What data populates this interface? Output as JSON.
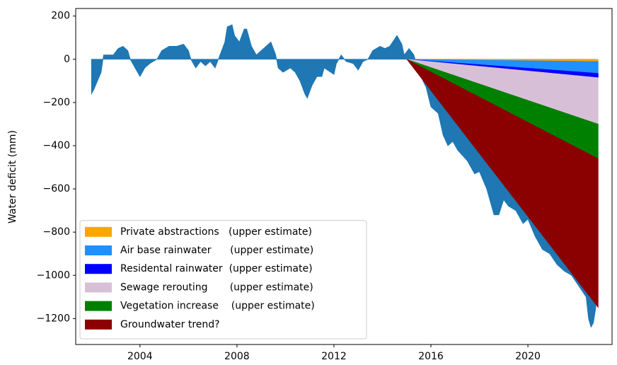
{
  "chart_data": {
    "type": "area",
    "y_label": "Water deficit (mm)",
    "xlim": [
      2001.35,
      2023.47
    ],
    "ylim": [
      -1320,
      235
    ],
    "xticks": [
      2004,
      2008,
      2012,
      2016,
      2020
    ],
    "yticks": [
      200,
      0,
      {
        "value": -200,
        "label": "−200"
      },
      {
        "value": -400,
        "label": "−400"
      },
      {
        "value": -600,
        "label": "−600"
      },
      {
        "value": -800,
        "label": "−800"
      },
      {
        "value": -1000,
        "label": "−1000"
      },
      {
        "value": -1200,
        "label": "−1200"
      }
    ],
    "measured": {
      "color": "#1f77b4",
      "x": [
        2002.0,
        2002.1,
        2002.4,
        2002.5,
        2002.9,
        2003.1,
        2003.3,
        2003.5,
        2003.6,
        2003.8,
        2004.0,
        2004.2,
        2004.4,
        2004.7,
        2004.9,
        2005.2,
        2005.5,
        2005.8,
        2006.0,
        2006.1,
        2006.3,
        2006.5,
        2006.7,
        2006.9,
        2007.1,
        2007.3,
        2007.5,
        2007.6,
        2007.8,
        2007.9,
        2008.1,
        2008.3,
        2008.4,
        2008.6,
        2008.8,
        2009.0,
        2009.2,
        2009.4,
        2009.6,
        2009.7,
        2009.9,
        2010.2,
        2010.4,
        2010.6,
        2010.8,
        2010.9,
        2011.1,
        2011.3,
        2011.5,
        2011.6,
        2012.0,
        2012.1,
        2012.3,
        2012.5,
        2012.8,
        2013.0,
        2013.2,
        2013.4,
        2013.6,
        2013.9,
        2014.1,
        2014.3,
        2014.6,
        2014.8,
        2014.9,
        2015.1,
        2015.3,
        2015.5,
        2015.8,
        2016.0,
        2016.3,
        2016.5,
        2016.7,
        2016.9,
        2017.1,
        2017.5,
        2017.8,
        2018.0,
        2018.3,
        2018.6,
        2018.8,
        2019.0,
        2019.2,
        2019.5,
        2019.8,
        2020.0,
        2020.3,
        2020.6,
        2020.9,
        2021.2,
        2021.5,
        2021.8,
        2022.1,
        2022.4,
        2022.5,
        2022.6,
        2022.7,
        2022.8
      ],
      "values": [
        -160,
        -140,
        -60,
        20,
        20,
        50,
        60,
        40,
        0,
        -40,
        -80,
        -40,
        -20,
        0,
        40,
        60,
        60,
        70,
        40,
        0,
        -40,
        -10,
        -30,
        -10,
        -40,
        20,
        80,
        150,
        160,
        110,
        80,
        140,
        140,
        60,
        20,
        40,
        60,
        80,
        20,
        -40,
        -60,
        -40,
        -60,
        -100,
        -160,
        -180,
        -120,
        -80,
        -80,
        -40,
        -70,
        -20,
        20,
        -10,
        -20,
        -50,
        -10,
        0,
        40,
        60,
        50,
        60,
        110,
        70,
        20,
        50,
        20,
        -60,
        -130,
        -220,
        -250,
        -350,
        -400,
        -380,
        -420,
        -470,
        -530,
        -520,
        -600,
        -720,
        -720,
        -650,
        -680,
        -700,
        -760,
        -740,
        -820,
        -880,
        -900,
        -950,
        -980,
        -1000,
        -1050,
        -1100,
        -1200,
        -1240,
        -1220,
        -1150
      ]
    },
    "x": [
      2015.0,
      2022.9
    ],
    "series": [
      {
        "name": "Private abstractions   (upper estimate)",
        "color": "#ffa500",
        "values": [
          0,
          -10
        ]
      },
      {
        "name": "Air base rainwater      (upper estimate)",
        "color": "#1e90ff",
        "values": [
          0,
          -55
        ]
      },
      {
        "name": "Residental rainwater  (upper estimate)",
        "color": "#0000ff",
        "values": [
          0,
          -20
        ]
      },
      {
        "name": "Sewage rerouting       (upper estimate)",
        "color": "#d8bfd8",
        "values": [
          0,
          -215
        ]
      },
      {
        "name": "Vegetation increase    (upper estimate)",
        "color": "#008000",
        "values": [
          0,
          -160
        ]
      },
      {
        "name": "Groundwater trend?",
        "color": "#8b0000",
        "values": [
          0,
          -690
        ]
      }
    ],
    "legend": "lower left"
  }
}
